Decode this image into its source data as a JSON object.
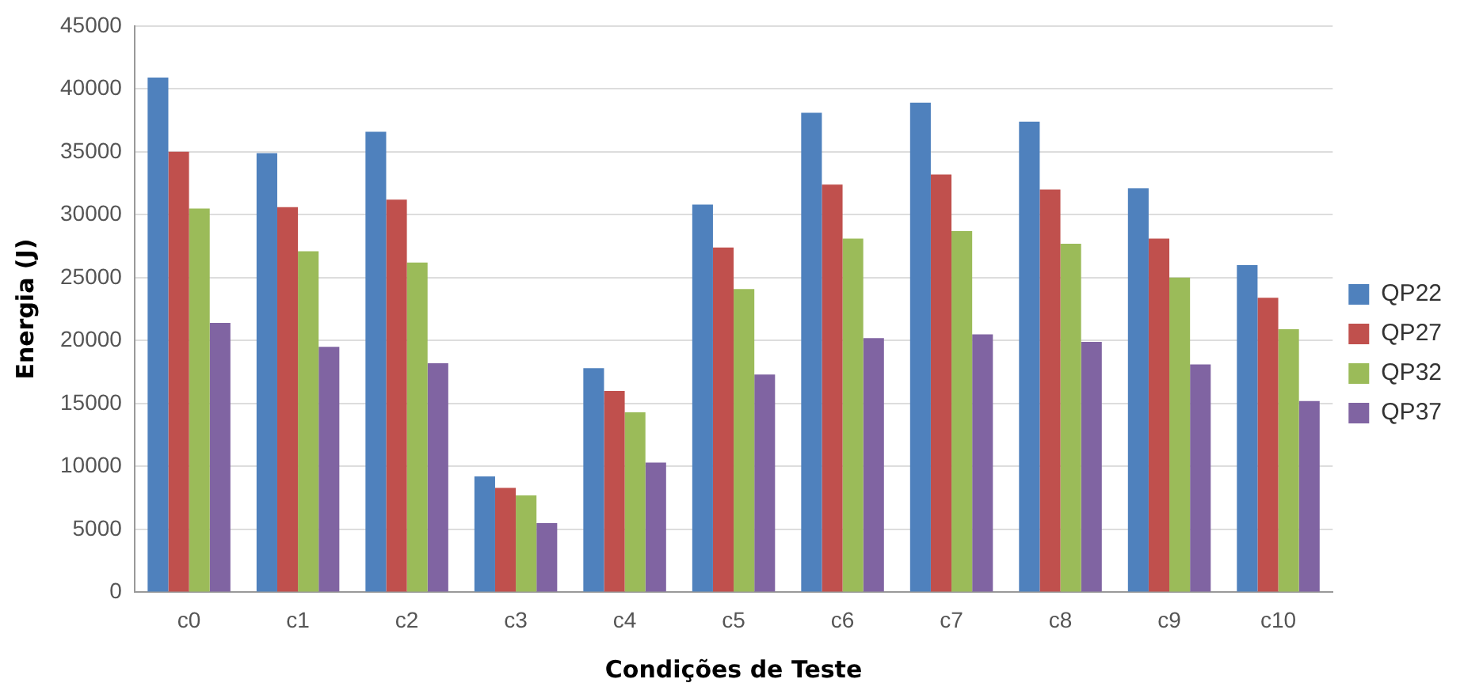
{
  "chart_data": {
    "type": "bar",
    "xlabel": "Condições de Teste",
    "ylabel": "Energia (J)",
    "categories": [
      "c0",
      "c1",
      "c2",
      "c3",
      "c4",
      "c5",
      "c6",
      "c7",
      "c8",
      "c9",
      "c10"
    ],
    "series": [
      {
        "name": "QP22",
        "color": "#4f81bd",
        "values": [
          40900,
          34900,
          36600,
          9200,
          17800,
          30800,
          38100,
          38900,
          37400,
          32100,
          26000
        ]
      },
      {
        "name": "QP27",
        "color": "#c0504d",
        "values": [
          35000,
          30600,
          31200,
          8300,
          16000,
          27400,
          32400,
          33200,
          32000,
          28100,
          23400
        ]
      },
      {
        "name": "QP32",
        "color": "#9bbb59",
        "values": [
          30500,
          27100,
          26200,
          7700,
          14300,
          24100,
          28100,
          28700,
          27700,
          25000,
          20900
        ]
      },
      {
        "name": "QP37",
        "color": "#8064a2",
        "values": [
          21400,
          19500,
          18200,
          5500,
          10300,
          17300,
          20200,
          20500,
          19900,
          18100,
          15200
        ]
      }
    ],
    "ylim": [
      0,
      45000
    ],
    "yticks": [
      0,
      5000,
      10000,
      15000,
      20000,
      25000,
      30000,
      35000,
      40000,
      45000
    ],
    "grid": "y",
    "legend": "right"
  }
}
